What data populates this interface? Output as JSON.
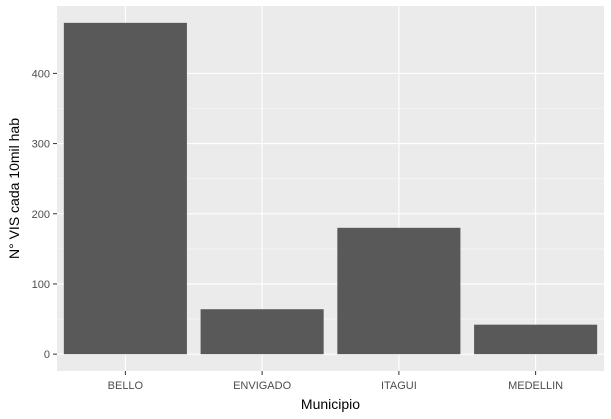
{
  "chart_data": {
    "type": "bar",
    "categories": [
      "BELLO",
      "ENVIGADO",
      "ITAGUI",
      "MEDELLIN"
    ],
    "values": [
      472,
      64,
      180,
      42
    ],
    "title": "",
    "xlabel": "Municipio",
    "ylabel": "N° VIS cada 10mil hab",
    "ylim": [
      -24,
      496
    ],
    "yticks": [
      0,
      100,
      200,
      300,
      400
    ],
    "y_tick_labels": [
      "0",
      "100",
      "200",
      "300",
      "400"
    ],
    "grid": true,
    "legend": "none",
    "colors": {
      "bar": "#595959",
      "panel": "#ebebeb",
      "grid_major": "#ffffff",
      "grid_minor": "#f5f5f5",
      "tick_text": "#4d4d4d",
      "axis_title": "#000000"
    }
  }
}
